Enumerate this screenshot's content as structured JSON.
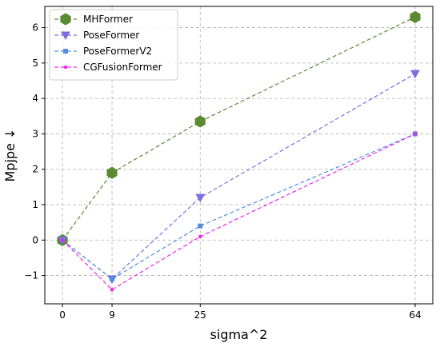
{
  "chart_data": {
    "type": "line",
    "xlabel": "sigma^2",
    "ylabel": "Mpjpe ↓",
    "x": [
      0,
      9,
      25,
      64
    ],
    "x_ticks": [
      "0",
      "9",
      "25",
      "64"
    ],
    "y_ticks": [
      "−1",
      "0",
      "1",
      "2",
      "3",
      "4",
      "5",
      "6"
    ],
    "xlim": [
      -3.2,
      67.2
    ],
    "ylim": [
      -1.8,
      6.6
    ],
    "grid": true,
    "legend_position": "top-left",
    "series": [
      {
        "name": "MHFormer",
        "values": [
          0,
          1.9,
          3.35,
          6.3
        ],
        "color": "#5a8a32",
        "marker": "hexagon"
      },
      {
        "name": "PoseFormer",
        "values": [
          0,
          -1.1,
          1.2,
          4.7
        ],
        "color": "#7b6fe0",
        "marker": "triangle-down"
      },
      {
        "name": "PoseFormerV2",
        "values": [
          0,
          -1.1,
          0.4,
          3.0
        ],
        "color": "#4e8fe0",
        "marker": "square"
      },
      {
        "name": "CGFusionFormer",
        "values": [
          0,
          -1.4,
          0.1,
          3.0
        ],
        "color": "#ee22ee",
        "marker": "circle"
      }
    ]
  }
}
